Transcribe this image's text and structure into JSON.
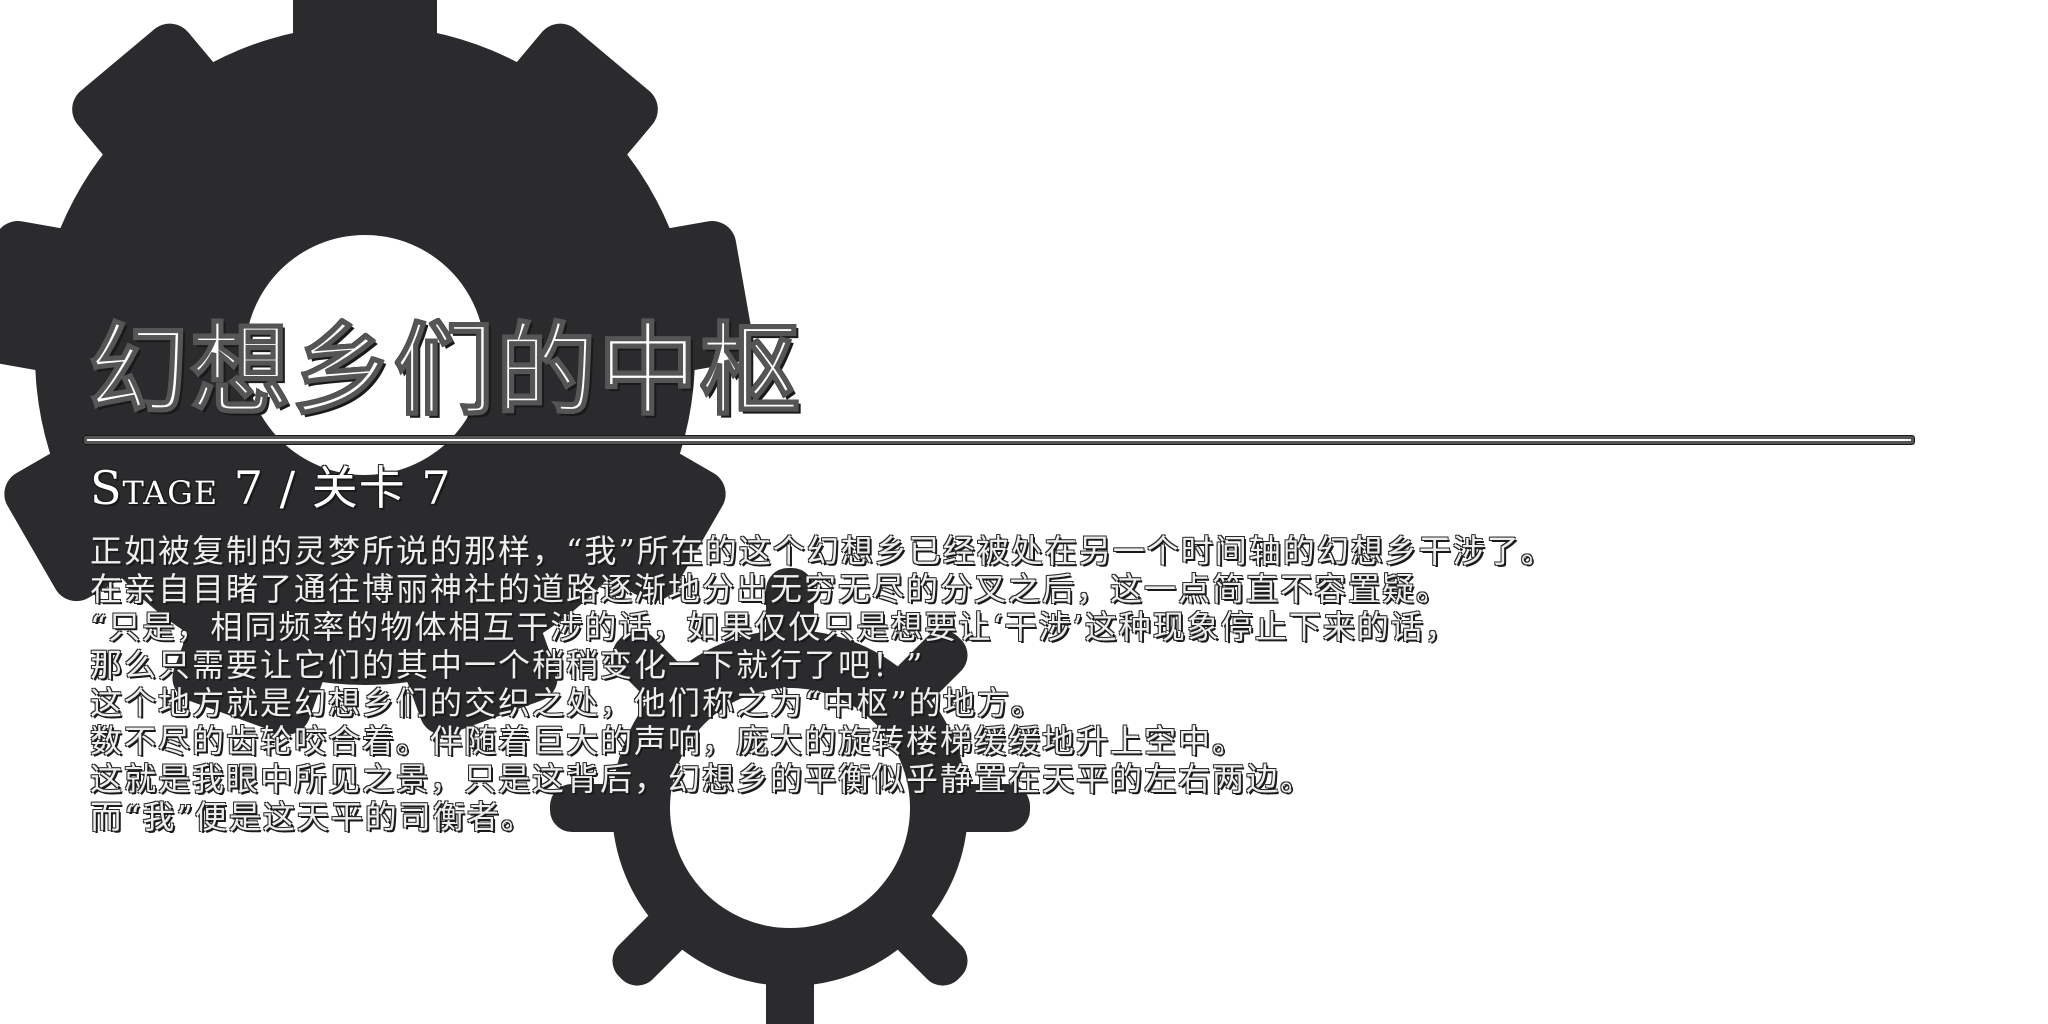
{
  "title": "幻想乡们的中枢",
  "stage_label": "Stage 7 / 关卡 7",
  "story_lines": [
    "正如被复制的灵梦所说的那样，“我”所在的这个幻想乡已经被处在另一个时间轴的幻想乡干涉了。",
    "在亲自目睹了通往博丽神社的道路逐渐地分出无穷无尽的分叉之后，这一点简直不容置疑。",
    "“只是，相同频率的物体相互干涉的话，如果仅仅只是想要让‘干涉’这种现象停止下来的话，",
    "那么只需要让它们的其中一个稍稍变化一下就行了吧！”",
    "这个地方就是幻想乡们的交织之处，他们称之为“中枢”的地方。",
    "数不尽的齿轮咬合着。伴随着巨大的声响，庞大的旋转楼梯缓缓地升上空中。",
    "这就是我眼中所见之景，只是这背后，幻想乡的平衡似乎静置在天平的左右两边。",
    "而“我”便是这天平的司衡者。"
  ],
  "colors": {
    "gear": "#2b2b2d",
    "background": "#ffffff",
    "text_fill": "#ffffff",
    "text_outline": "#1a1a1a"
  },
  "icons": [
    "large-gear-icon",
    "small-gear-icon"
  ]
}
